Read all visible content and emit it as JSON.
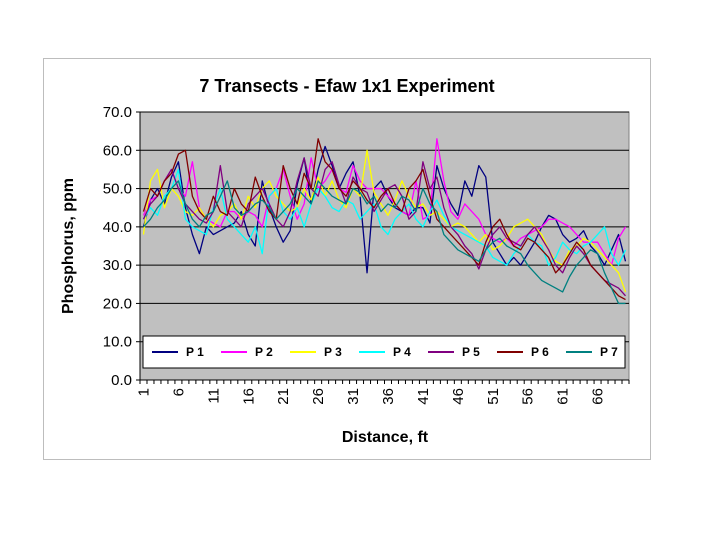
{
  "chart_data": {
    "type": "line",
    "title": "7 Transects - Efaw 1x1 Experiment",
    "xlabel": "Distance, ft",
    "ylabel": "Phosphorus, ppm",
    "ylim": [
      0,
      70
    ],
    "yticks": [
      "0.0",
      "10.0",
      "20.0",
      "30.0",
      "40.0",
      "50.0",
      "60.0",
      "70.0"
    ],
    "xticks": [
      "1",
      "6",
      "11",
      "16",
      "21",
      "26",
      "31",
      "36",
      "41",
      "46",
      "51",
      "56",
      "61",
      "66"
    ],
    "x_range": [
      1,
      70
    ],
    "grid": "horizontal",
    "legend_position": "bottom-inside",
    "series": [
      {
        "name": "P 1",
        "color": "#000080",
        "values": [
          40,
          47,
          50,
          46,
          53,
          57,
          45,
          38,
          33,
          40,
          38,
          39,
          40,
          41,
          44,
          38,
          35,
          52,
          45,
          40,
          36,
          39,
          51,
          58,
          46,
          55,
          61,
          56,
          50,
          54,
          57,
          48,
          28,
          50,
          52,
          48,
          45,
          44,
          43,
          45,
          45,
          41,
          56,
          50,
          46,
          43,
          52,
          48,
          56,
          53,
          36,
          33,
          30,
          32,
          30,
          33,
          36,
          40,
          43,
          42,
          38,
          36,
          37,
          39,
          35,
          33,
          30,
          34,
          38,
          31
        ]
      },
      {
        "name": "P 2",
        "color": "#FF00FF",
        "values": [
          43,
          47,
          48,
          52,
          55,
          50,
          48,
          57,
          45,
          42,
          41,
          40,
          44,
          44,
          42,
          44,
          43,
          40,
          48,
          50,
          55,
          48,
          42,
          46,
          58,
          50,
          52,
          55,
          50,
          49,
          56,
          52,
          50,
          50,
          50,
          48,
          46,
          44,
          43,
          52,
          42,
          43,
          63,
          52,
          44,
          42,
          46,
          44,
          42,
          38,
          37,
          36,
          37,
          35,
          37,
          38,
          39,
          40,
          42,
          42,
          41,
          40,
          38,
          36,
          36,
          36,
          33,
          30,
          37,
          40
        ]
      },
      {
        "name": "P 3",
        "color": "#FFFF00",
        "values": [
          38,
          52,
          55,
          45,
          50,
          48,
          44,
          43,
          45,
          42,
          40,
          43,
          44,
          46,
          42,
          48,
          45,
          50,
          52,
          48,
          46,
          44,
          45,
          50,
          47,
          53,
          48,
          52,
          47,
          45,
          50,
          48,
          60,
          49,
          46,
          43,
          47,
          52,
          48,
          45,
          46,
          43,
          44,
          42,
          40,
          41,
          40,
          38,
          36,
          38,
          34,
          35,
          37,
          40,
          41,
          42,
          40,
          38,
          34,
          31,
          30,
          34,
          35,
          37,
          36,
          34,
          32,
          30,
          28,
          23
        ]
      },
      {
        "name": "P 4",
        "color": "#00FFFF",
        "values": [
          42,
          45,
          43,
          48,
          50,
          55,
          42,
          40,
          39,
          38,
          45,
          50,
          42,
          40,
          38,
          36,
          40,
          33,
          48,
          50,
          44,
          42,
          45,
          40,
          46,
          50,
          48,
          45,
          44,
          47,
          46,
          42,
          44,
          46,
          40,
          38,
          42,
          44,
          46,
          42,
          40,
          44,
          47,
          43,
          40,
          39,
          38,
          37,
          36,
          35,
          32,
          31,
          30,
          33,
          35,
          38,
          36,
          35,
          30,
          32,
          36,
          34,
          33,
          35,
          36,
          38,
          40,
          33,
          30,
          34
        ]
      },
      {
        "name": "P 5",
        "color": "#800080",
        "values": [
          42,
          46,
          48,
          52,
          55,
          50,
          46,
          44,
          42,
          41,
          44,
          56,
          44,
          42,
          40,
          46,
          48,
          50,
          46,
          42,
          40,
          44,
          52,
          58,
          50,
          48,
          55,
          57,
          51,
          46,
          53,
          50,
          49,
          44,
          47,
          50,
          51,
          48,
          42,
          44,
          57,
          50,
          53,
          45,
          40,
          38,
          35,
          33,
          29,
          34,
          38,
          40,
          37,
          36,
          35,
          38,
          40,
          37,
          34,
          30,
          28,
          32,
          35,
          33,
          30,
          28,
          26,
          25,
          24,
          22
        ]
      },
      {
        "name": "P 6",
        "color": "#800000",
        "values": [
          44,
          50,
          48,
          52,
          54,
          59,
          60,
          48,
          44,
          42,
          48,
          44,
          43,
          50,
          46,
          44,
          53,
          48,
          44,
          42,
          56,
          50,
          46,
          54,
          50,
          63,
          57,
          55,
          50,
          48,
          52,
          50,
          47,
          45,
          48,
          50,
          46,
          44,
          50,
          52,
          55,
          48,
          42,
          40,
          38,
          36,
          34,
          32,
          30,
          36,
          40,
          42,
          38,
          35,
          34,
          37,
          36,
          34,
          32,
          28,
          30,
          33,
          36,
          34,
          30,
          28,
          26,
          24,
          22,
          21
        ]
      },
      {
        "name": "P 7",
        "color": "#008080",
        "values": [
          40,
          42,
          45,
          47,
          50,
          52,
          46,
          42,
          40,
          43,
          44,
          48,
          52,
          45,
          43,
          44,
          46,
          47,
          45,
          42,
          44,
          46,
          50,
          48,
          46,
          52,
          50,
          48,
          47,
          46,
          50,
          49,
          46,
          48,
          44,
          46,
          45,
          48,
          47,
          44,
          50,
          46,
          44,
          38,
          36,
          34,
          33,
          32,
          31,
          34,
          36,
          37,
          35,
          34,
          33,
          30,
          28,
          26,
          25,
          24,
          23,
          27,
          30,
          32,
          34,
          33,
          28,
          24,
          20,
          20
        ]
      }
    ]
  }
}
